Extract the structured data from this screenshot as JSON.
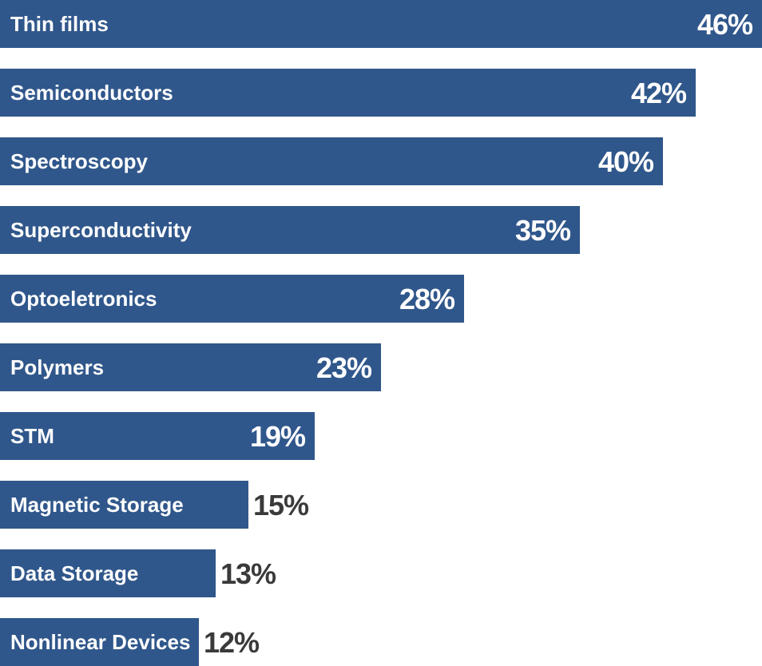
{
  "chart_data": {
    "type": "bar",
    "orientation": "horizontal",
    "categories": [
      "Thin films",
      "Semiconductors",
      "Spectroscopy",
      "Superconductivity",
      "Optoeletronics",
      "Polymers",
      "STM",
      "Magnetic Storage",
      "Data Storage",
      "Nonlinear Devices"
    ],
    "values": [
      46,
      42,
      40,
      35,
      28,
      23,
      19,
      15,
      13,
      12
    ],
    "value_labels": [
      "46%",
      "42%",
      "40%",
      "35%",
      "28%",
      "23%",
      "19%",
      "15%",
      "13%",
      "12%"
    ],
    "unit": "%",
    "xlim": [
      0,
      46
    ],
    "grid": false,
    "legend": "none",
    "colors": {
      "bar": "#30578b",
      "label_inside": "#ffffff",
      "label_outside": "#3a3a3a"
    }
  }
}
